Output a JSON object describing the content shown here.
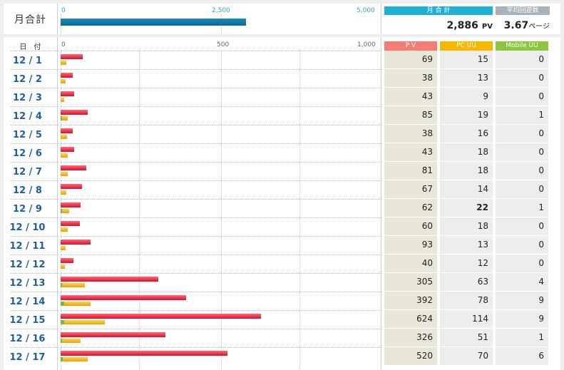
{
  "monthly": {
    "label": "月合計",
    "ticks": [
      "0",
      "2,500",
      "5,000"
    ],
    "bar_value": 2886,
    "bar_max": 5000,
    "pv_header": "月 合 計",
    "pv_value": "2,886",
    "pv_unit": "PV",
    "avg_header": "平均回遊数",
    "avg_value": "3.67",
    "avg_unit": "ページ",
    "colors": {
      "header_pv": "#1fb0d8",
      "header_avg": "#a9b2b8"
    }
  },
  "daily": {
    "date_header": "日　付",
    "ticks": [
      "0",
      "500",
      "1,000"
    ],
    "bar_max": 1000,
    "headers": {
      "pv": "P V",
      "pc_uu": "PC UU",
      "mobile_uu": "Mobile UU"
    },
    "header_colors": {
      "pv": "#f47d75",
      "pc_uu": "#f5b800",
      "mobile_uu": "#8cc63f"
    },
    "rows": [
      {
        "date": "12 / 1",
        "pv": "69",
        "pc_uu": "15",
        "mobile_uu": "0"
      },
      {
        "date": "12 / 2",
        "pv": "38",
        "pc_uu": "13",
        "mobile_uu": "0"
      },
      {
        "date": "12 / 3",
        "pv": "43",
        "pc_uu": "9",
        "mobile_uu": "0"
      },
      {
        "date": "12 / 4",
        "pv": "85",
        "pc_uu": "19",
        "mobile_uu": "1"
      },
      {
        "date": "12 / 5",
        "pv": "38",
        "pc_uu": "16",
        "mobile_uu": "0"
      },
      {
        "date": "12 / 6",
        "pv": "43",
        "pc_uu": "18",
        "mobile_uu": "0"
      },
      {
        "date": "12 / 7",
        "pv": "81",
        "pc_uu": "18",
        "mobile_uu": "0"
      },
      {
        "date": "12 / 8",
        "pv": "67",
        "pc_uu": "14",
        "mobile_uu": "0"
      },
      {
        "date": "12 / 9",
        "pv": "62",
        "pc_uu": "22",
        "mobile_uu": "1"
      },
      {
        "date": "12 / 10",
        "pv": "60",
        "pc_uu": "18",
        "mobile_uu": "0"
      },
      {
        "date": "12 / 11",
        "pv": "93",
        "pc_uu": "13",
        "mobile_uu": "0"
      },
      {
        "date": "12 / 12",
        "pv": "40",
        "pc_uu": "12",
        "mobile_uu": "0"
      },
      {
        "date": "12 / 13",
        "pv": "305",
        "pc_uu": "63",
        "mobile_uu": "4"
      },
      {
        "date": "12 / 14",
        "pv": "392",
        "pc_uu": "78",
        "mobile_uu": "9"
      },
      {
        "date": "12 / 15",
        "pv": "624",
        "pc_uu": "114",
        "mobile_uu": "9"
      },
      {
        "date": "12 / 16",
        "pv": "326",
        "pc_uu": "51",
        "mobile_uu": "1"
      },
      {
        "date": "12 / 17",
        "pv": "520",
        "pc_uu": "70",
        "mobile_uu": "6"
      }
    ]
  }
}
